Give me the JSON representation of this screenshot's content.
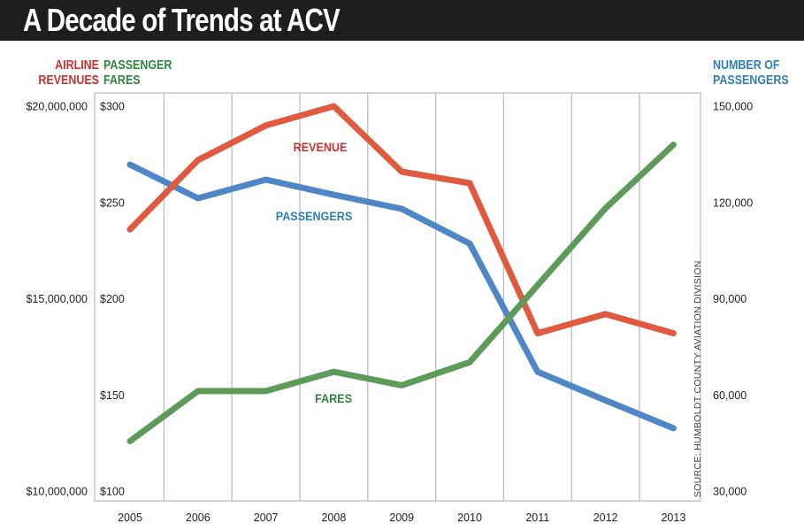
{
  "title": "A Decade of Trends at ACV",
  "axis_titles": {
    "revenue": [
      "AIRLINE",
      "REVENUES"
    ],
    "fares": [
      "PASSENGER",
      "FARES"
    ],
    "passengers": [
      "NUMBER OF",
      "PASSENGERS"
    ]
  },
  "source": "SOURCE: HUMBOLDT COUNTY AVIATION DIVISION",
  "colors": {
    "revenue": "#e05a3f",
    "fares": "#5e9b5a",
    "passengers": "#4f86c6",
    "revenue_label": "#c8312f",
    "fares_label": "#2e8540",
    "passengers_label": "#2f7fb6",
    "grid": "#bdbdbd"
  },
  "chart_data": {
    "type": "line",
    "title": "A Decade of Trends at ACV",
    "x": [
      "2005",
      "2006",
      "2007",
      "2008",
      "2009",
      "2010",
      "2011",
      "2012",
      "2013"
    ],
    "series": [
      {
        "name": "REVENUE",
        "axis": "left-outer",
        "unit": "USD",
        "values": [
          16800000,
          18600000,
          19500000,
          20000000,
          18300000,
          18000000,
          14100000,
          14600000,
          14100000
        ]
      },
      {
        "name": "FARES",
        "axis": "left-inner",
        "unit": "USD",
        "values": [
          126,
          152,
          152,
          162,
          155,
          167,
          207,
          247,
          280
        ]
      },
      {
        "name": "PASSENGERS",
        "axis": "right",
        "unit": "count",
        "values": [
          131800,
          121300,
          127100,
          122400,
          118000,
          107200,
          67200,
          58300,
          49600
        ]
      }
    ],
    "axes": {
      "revenue": {
        "title": "AIRLINE REVENUES",
        "range": [
          10000000,
          20000000
        ],
        "ticks": [
          {
            "v": 20000000,
            "label": "$20,000,000"
          },
          {
            "v": 15000000,
            "label": "$15,000,000"
          },
          {
            "v": 10000000,
            "label": "$10,000,000"
          }
        ]
      },
      "fares": {
        "title": "PASSENGER FARES",
        "range": [
          100,
          300
        ],
        "ticks": [
          {
            "v": 300,
            "label": "$300"
          },
          {
            "v": 250,
            "label": "$250"
          },
          {
            "v": 200,
            "label": "$200"
          },
          {
            "v": 150,
            "label": "$150"
          },
          {
            "v": 100,
            "label": "$100"
          }
        ]
      },
      "passengers": {
        "title": "NUMBER OF PASSENGERS",
        "range": [
          30000,
          150000
        ],
        "ticks": [
          {
            "v": 150000,
            "label": "150,000"
          },
          {
            "v": 120000,
            "label": "120,000"
          },
          {
            "v": 90000,
            "label": "90,000"
          },
          {
            "v": 60000,
            "label": "60,000"
          },
          {
            "v": 30000,
            "label": "30,000"
          }
        ]
      }
    },
    "grid": "vertical",
    "annotations": [
      {
        "series": "REVENUE",
        "text": "REVENUE"
      },
      {
        "series": "PASSENGERS",
        "text": "PASSENGERS"
      },
      {
        "series": "FARES",
        "text": "FARES"
      }
    ],
    "legend": "none (inline labels)"
  }
}
